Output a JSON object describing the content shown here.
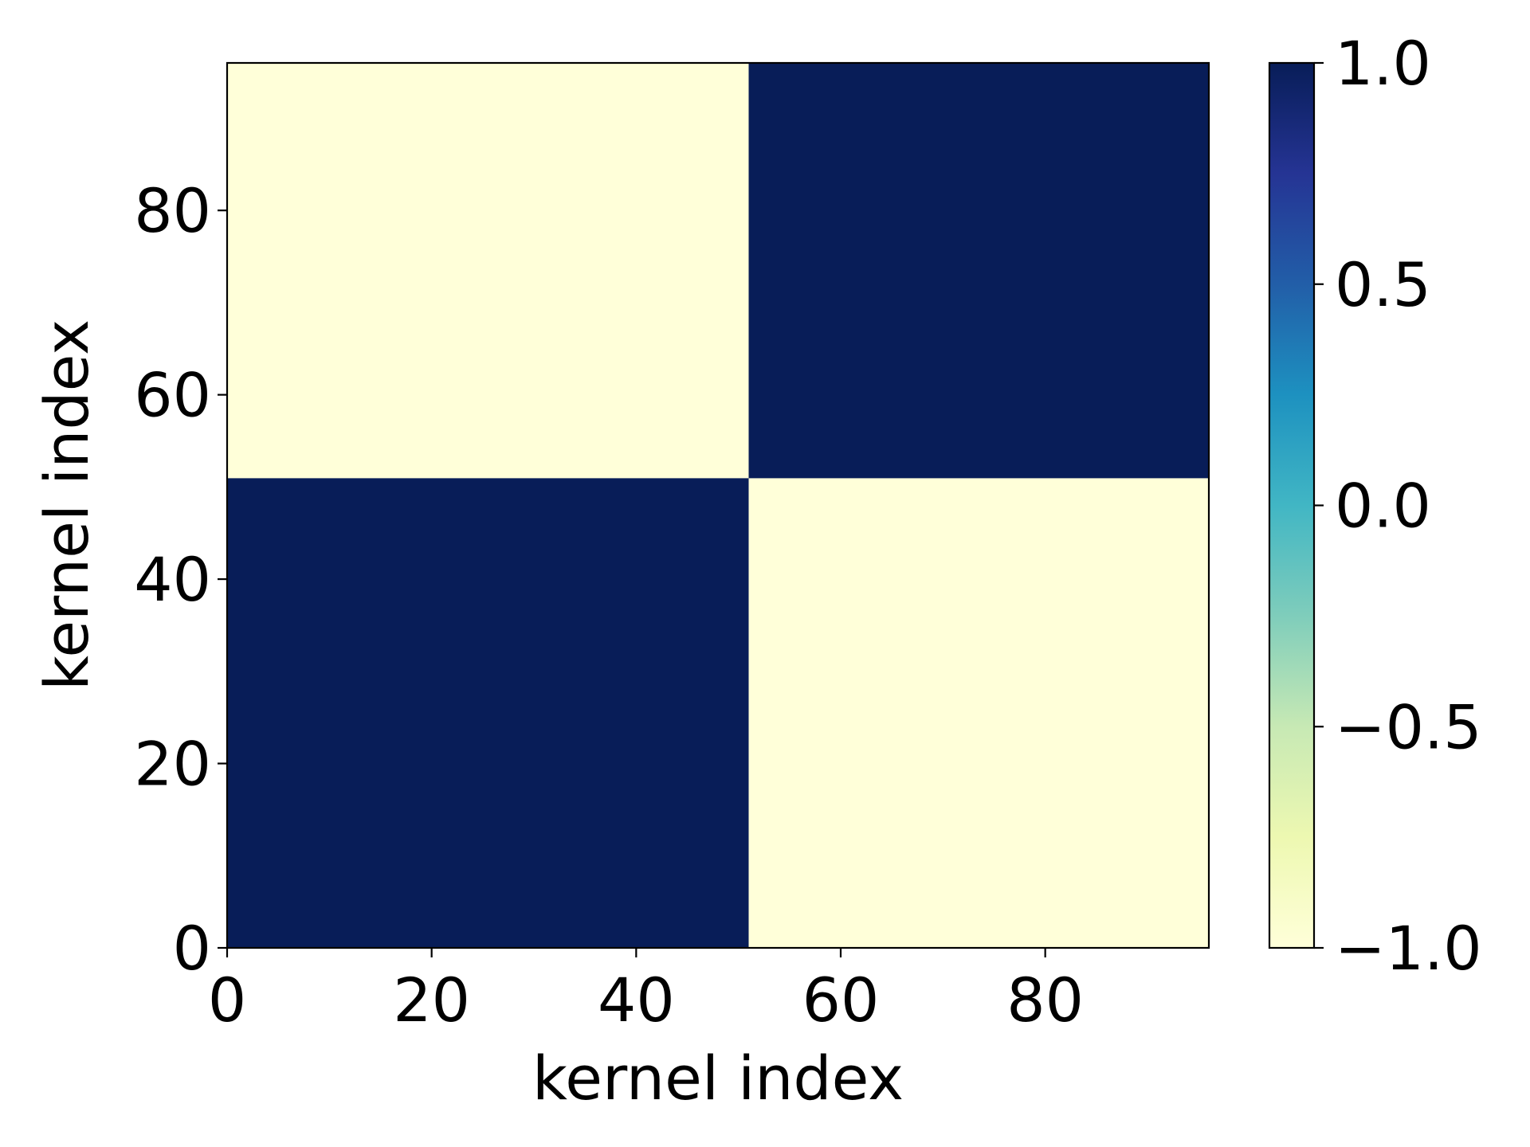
{
  "chart_data": {
    "type": "heatmap",
    "title": "",
    "xlabel": "kernel index",
    "ylabel": "kernel index",
    "xlim": [
      0,
      96
    ],
    "ylim": [
      0,
      96
    ],
    "x_ticks": [
      0,
      20,
      40,
      60,
      80
    ],
    "x_tick_labels": [
      "0",
      "20",
      "40",
      "60",
      "80"
    ],
    "y_ticks": [
      0,
      20,
      40,
      60,
      80
    ],
    "y_tick_labels": [
      "0",
      "20",
      "40",
      "60",
      "80"
    ],
    "grid": false,
    "colormap": "YlGnBu",
    "color_range": [
      -1.0,
      1.0
    ],
    "colorbar": {
      "ticks": [
        -1.0,
        -0.5,
        0.0,
        0.5,
        1.0
      ],
      "tick_labels": [
        "−1.0",
        "−0.5",
        "0.0",
        "0.5",
        "1.0"
      ],
      "placement": "right"
    },
    "colormap_stops": [
      "#ffffd9",
      "#edf8b1",
      "#c7e9b4",
      "#7fcdbb",
      "#41b6c4",
      "#1d91c0",
      "#225ea8",
      "#253494",
      "#081d58"
    ],
    "cells": [
      {
        "x": [
          0,
          51
        ],
        "y": [
          0,
          51
        ],
        "value": 1.0
      },
      {
        "x": [
          51,
          96
        ],
        "y": [
          0,
          51
        ],
        "value": -1.0
      },
      {
        "x": [
          0,
          51
        ],
        "y": [
          51,
          96
        ],
        "value": -1.0
      },
      {
        "x": [
          51,
          96
        ],
        "y": [
          51,
          96
        ],
        "value": 1.0
      }
    ]
  }
}
